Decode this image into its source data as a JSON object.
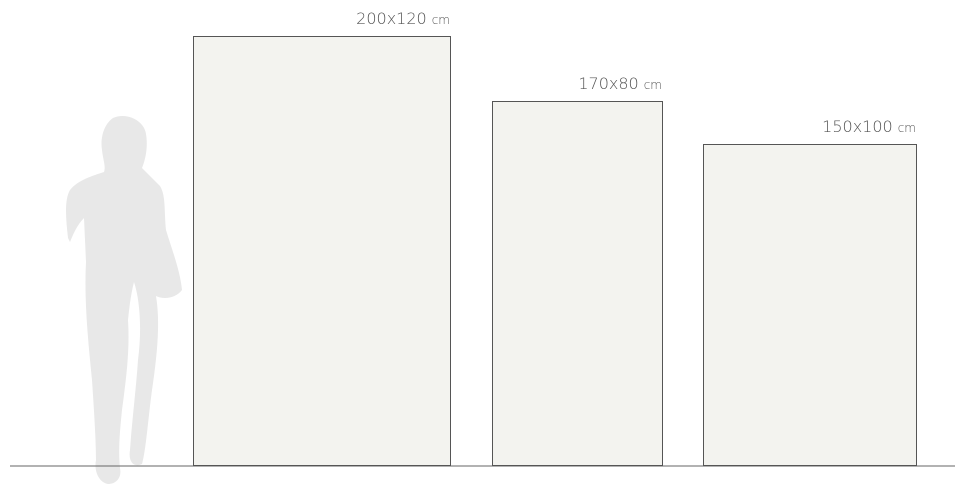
{
  "items": [
    {
      "size": "200x120",
      "unit": "cm"
    },
    {
      "size": "170x80",
      "unit": "cm"
    },
    {
      "size": "150x100",
      "unit": "cm"
    }
  ]
}
